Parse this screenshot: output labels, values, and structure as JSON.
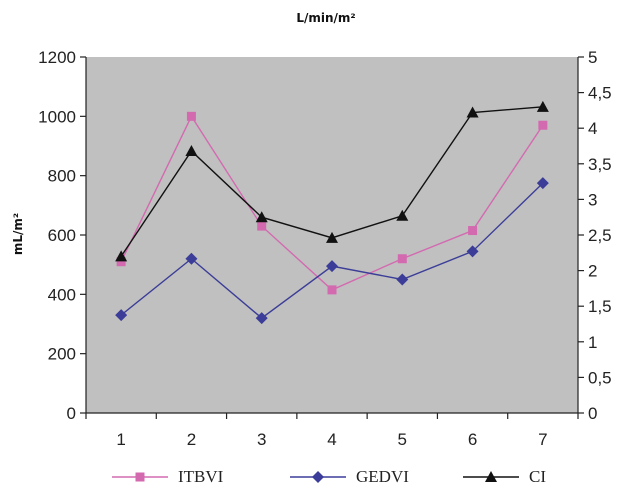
{
  "chart_data": {
    "type": "line",
    "title": "L/min/m²",
    "ylabel": "mL/m²",
    "ylabel_right": "",
    "xlabel": "",
    "categories": [
      "1",
      "2",
      "3",
      "4",
      "5",
      "6",
      "7"
    ],
    "ylim": [
      0,
      1200
    ],
    "yticks": [
      "0",
      "200",
      "400",
      "600",
      "800",
      "1000",
      "1200"
    ],
    "y2lim": [
      0,
      5
    ],
    "y2ticks": [
      "0",
      "0,5",
      "1",
      "1,5",
      "2",
      "2,5",
      "3",
      "3,5",
      "4",
      "4,5",
      "5"
    ],
    "grid": false,
    "legend_position": "bottom",
    "plot_background": "#c0c0c0",
    "series": [
      {
        "name": "ITBVI",
        "axis": "left",
        "color": "#d36ab0",
        "marker": "square",
        "values": [
          510,
          1000,
          630,
          415,
          520,
          615,
          970
        ]
      },
      {
        "name": "GEDVI",
        "axis": "left",
        "color": "#3b3d98",
        "marker": "diamond",
        "values": [
          330,
          520,
          320,
          495,
          450,
          545,
          775
        ]
      },
      {
        "name": "CI",
        "axis": "right",
        "color": "#111111",
        "marker": "triangle",
        "values": [
          2.2,
          3.68,
          2.75,
          2.46,
          2.77,
          4.22,
          4.3
        ]
      }
    ]
  }
}
